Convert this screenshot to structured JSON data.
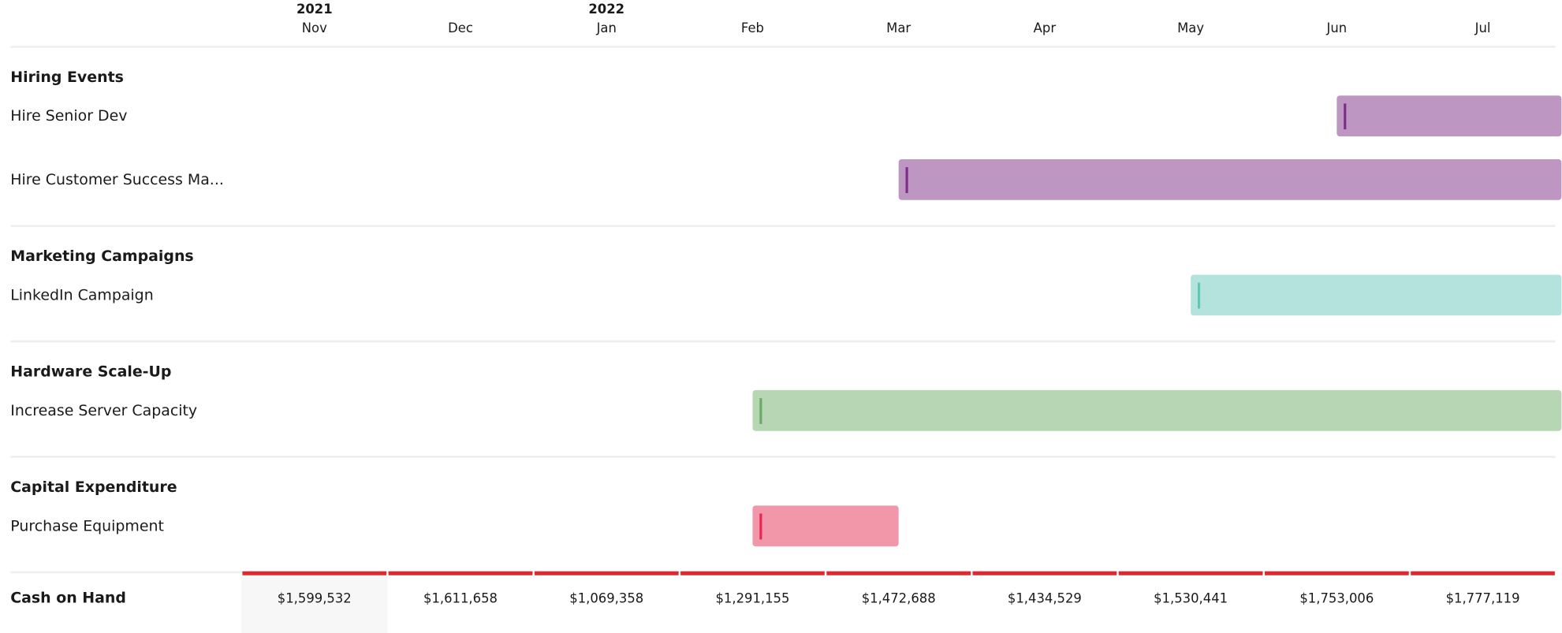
{
  "timeline": {
    "years": [
      "2021",
      "2022"
    ],
    "months": [
      "Nov",
      "Dec",
      "Jan",
      "Feb",
      "Mar",
      "Apr",
      "May",
      "Jun",
      "Jul"
    ]
  },
  "groups": [
    {
      "title": "Hiring Events",
      "color": "#bd97c1",
      "marker": "#7b2f86",
      "items": [
        "Hire Senior Dev",
        "Hire Customer Success Ma..."
      ]
    },
    {
      "title": "Marketing Campaigns",
      "color": "#b3e3dc",
      "marker": "#5ec8b6",
      "items": [
        "LinkedIn Campaign"
      ]
    },
    {
      "title": "Hardware Scale-Up",
      "color": "#b7d7b4",
      "marker": "#6aaa64",
      "items": [
        "Increase Server Capacity"
      ]
    },
    {
      "title": "Capital Expenditure",
      "color": "#f296aa",
      "marker": "#e8274f",
      "items": [
        "Purchase Equipment"
      ]
    }
  ],
  "cash": {
    "label": "Cash on Hand",
    "values": [
      "$1,599,532",
      "$1,611,658",
      "$1,069,358",
      "$1,291,155",
      "$1,472,688",
      "$1,434,529",
      "$1,530,441",
      "$1,753,006",
      "$1,777,119"
    ]
  }
}
